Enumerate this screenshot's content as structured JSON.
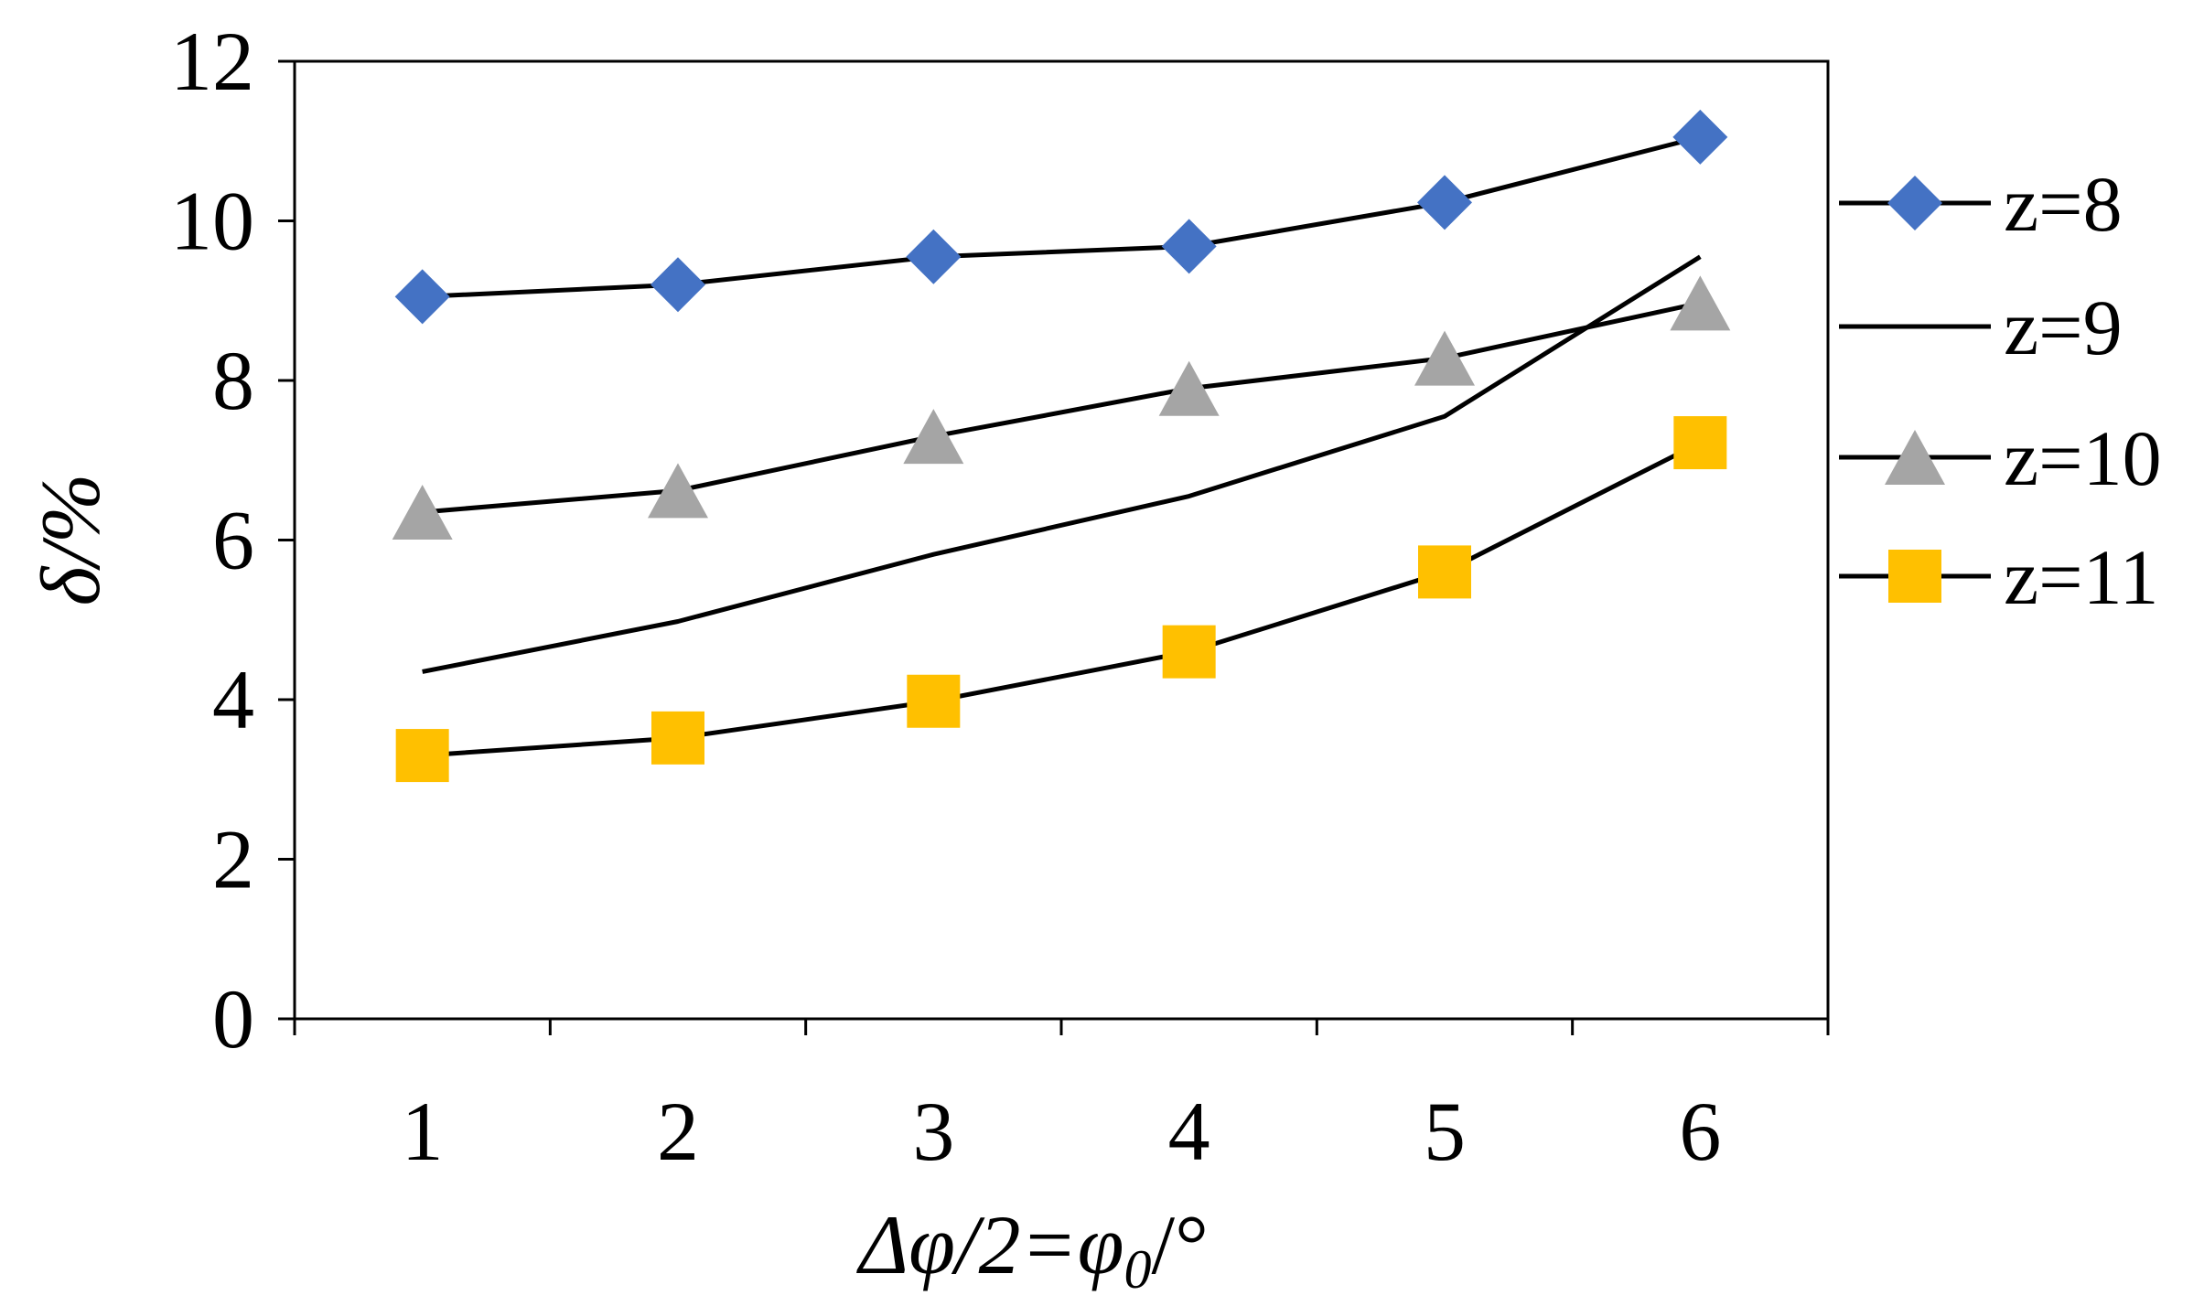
{
  "chart_data": {
    "type": "line",
    "title": "",
    "xlabel": {
      "main": "Δφ/2=φ",
      "sub": "0",
      "tail": "/°"
    },
    "ylabel": "δ/%",
    "categories": [
      "1",
      "2",
      "3",
      "4",
      "5",
      "6"
    ],
    "ylim": [
      0,
      12
    ],
    "yticks": [
      "0",
      "2",
      "4",
      "6",
      "8",
      "10",
      "12"
    ],
    "grid": false,
    "legend_position": "right",
    "series": [
      {
        "name": "z=8",
        "values": [
          9.05,
          9.2,
          9.55,
          9.68,
          10.23,
          11.05
        ],
        "marker": "diamond",
        "marker_color": "#4472C4"
      },
      {
        "name": "z=9",
        "values": [
          4.35,
          4.98,
          5.82,
          6.55,
          7.55,
          9.55
        ],
        "marker": "none",
        "marker_color": "#000000"
      },
      {
        "name": "z=10",
        "values": [
          6.35,
          6.62,
          7.3,
          7.9,
          8.28,
          8.97
        ],
        "marker": "triangle",
        "marker_color": "#A5A5A5"
      },
      {
        "name": "z=11",
        "values": [
          3.3,
          3.52,
          3.98,
          4.6,
          5.6,
          7.22
        ],
        "marker": "square",
        "marker_color": "#FFC000"
      }
    ],
    "line_color": "#000000"
  }
}
